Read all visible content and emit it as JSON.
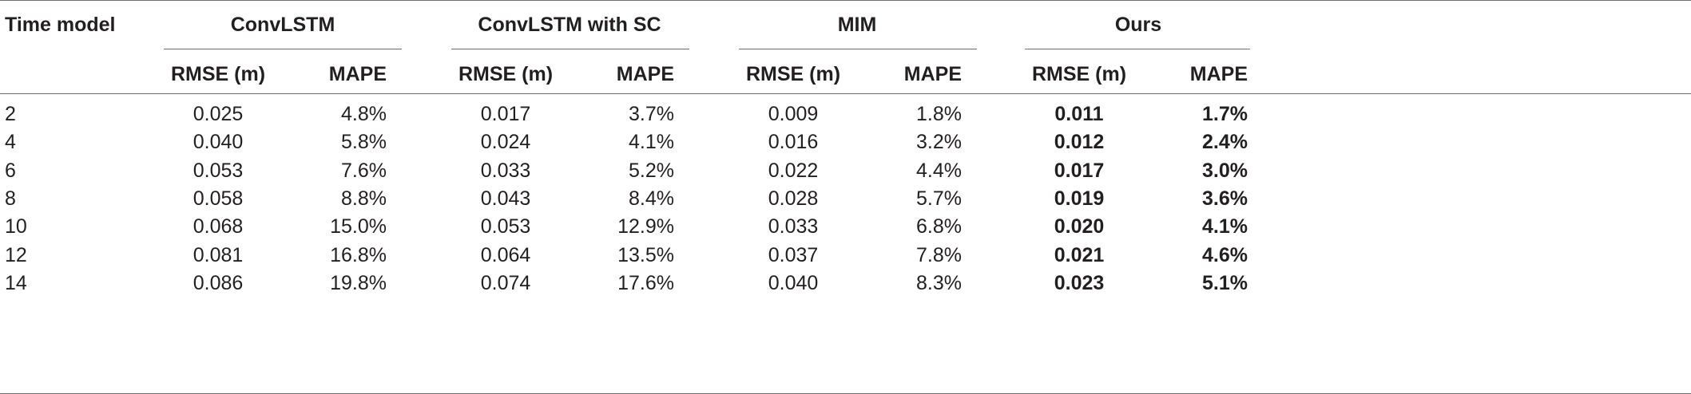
{
  "table": {
    "corner_header": "Time model",
    "groups": [
      "ConvLSTM",
      "ConvLSTM with SC",
      "MIM",
      "Ours"
    ],
    "subheaders": [
      "RMSE (m)",
      "MAPE"
    ],
    "rows": [
      {
        "t": "2",
        "v": [
          "0.025",
          "4.8%",
          "0.017",
          "3.7%",
          "0.009",
          "1.8%",
          "0.011",
          "1.7%"
        ]
      },
      {
        "t": "4",
        "v": [
          "0.040",
          "5.8%",
          "0.024",
          "4.1%",
          "0.016",
          "3.2%",
          "0.012",
          "2.4%"
        ]
      },
      {
        "t": "6",
        "v": [
          "0.053",
          "7.6%",
          "0.033",
          "5.2%",
          "0.022",
          "4.4%",
          "0.017",
          "3.0%"
        ]
      },
      {
        "t": "8",
        "v": [
          "0.058",
          "8.8%",
          "0.043",
          "8.4%",
          "0.028",
          "5.7%",
          "0.019",
          "3.6%"
        ]
      },
      {
        "t": "10",
        "v": [
          "0.068",
          "15.0%",
          "0.053",
          "12.9%",
          "0.033",
          "6.8%",
          "0.020",
          "4.1%"
        ]
      },
      {
        "t": "12",
        "v": [
          "0.081",
          "16.8%",
          "0.064",
          "13.5%",
          "0.037",
          "7.8%",
          "0.021",
          "4.6%"
        ]
      },
      {
        "t": "14",
        "v": [
          "0.086",
          "19.8%",
          "0.074",
          "17.6%",
          "0.040",
          "8.3%",
          "0.023",
          "5.1%"
        ]
      }
    ]
  }
}
